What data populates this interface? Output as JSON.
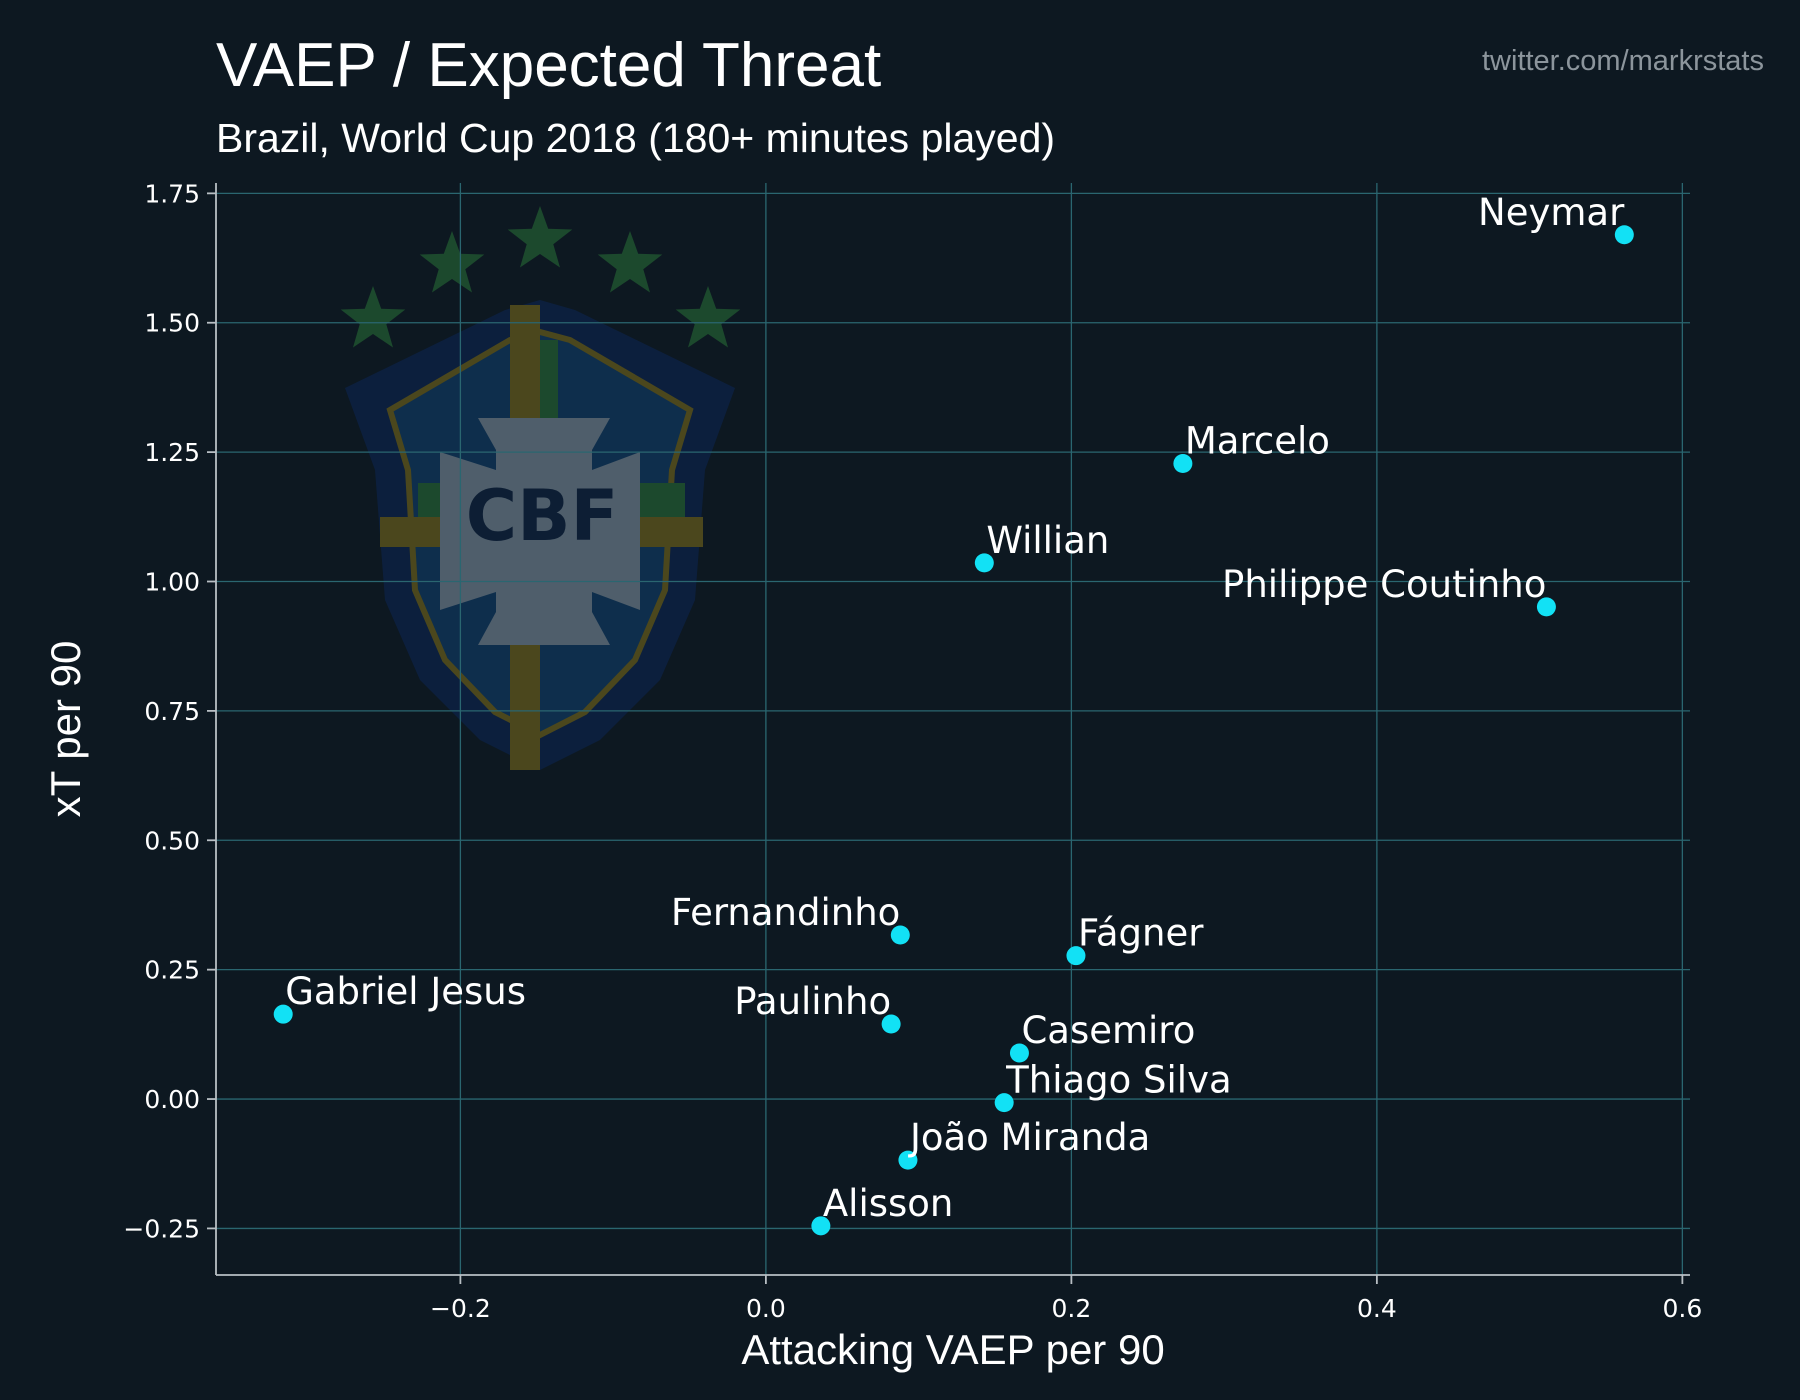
{
  "header": {
    "title": "VAEP / Expected Threat",
    "subtitle": "Brazil, World Cup 2018 (180+ minutes played)",
    "credit": "twitter.com/markrstats"
  },
  "logo": {
    "text": "CBF",
    "icon": "cbf-crest-icon",
    "colors": {
      "blue": "#0f3354",
      "green": "#1f5230",
      "yellow": "#56501d",
      "white": "#5b6b79"
    }
  },
  "colors": {
    "background": "#0d1821",
    "point": "#12e1f5",
    "grid": "#2a6670"
  },
  "chart_data": {
    "type": "scatter",
    "title": "VAEP / Expected Threat",
    "subtitle": "Brazil, World Cup 2018 (180+ minutes played)",
    "xlabel": "Attacking VAEP per 90",
    "ylabel": "xT per 90",
    "xlim": [
      -0.36,
      0.605
    ],
    "ylim": [
      -0.34,
      1.77
    ],
    "grid": true,
    "xticks": [
      -0.2,
      0.0,
      0.2,
      0.4,
      0.6
    ],
    "xtick_labels": [
      "−0.2",
      "0.0",
      "0.2",
      "0.4",
      "0.6"
    ],
    "yticks": [
      -0.25,
      0.0,
      0.25,
      0.5,
      0.75,
      1.0,
      1.25,
      1.5,
      1.75
    ],
    "ytick_labels": [
      "−0.25",
      "0.00",
      "0.25",
      "0.50",
      "0.75",
      "1.00",
      "1.25",
      "1.50",
      "1.75"
    ],
    "points": [
      {
        "name": "Neymar",
        "x": 0.562,
        "y": 1.67,
        "label_side": "left"
      },
      {
        "name": "Marcelo",
        "x": 0.273,
        "y": 1.228,
        "label_side": "right"
      },
      {
        "name": "Willian",
        "x": 0.143,
        "y": 1.036,
        "label_side": "right"
      },
      {
        "name": "Philippe Coutinho",
        "x": 0.511,
        "y": 0.951,
        "label_side": "left"
      },
      {
        "name": "Fernandinho",
        "x": 0.088,
        "y": 0.317,
        "label_side": "left"
      },
      {
        "name": "Fágner",
        "x": 0.203,
        "y": 0.277,
        "label_side": "right"
      },
      {
        "name": "Gabriel Jesus",
        "x": -0.316,
        "y": 0.164,
        "label_side": "right"
      },
      {
        "name": "Paulinho",
        "x": 0.082,
        "y": 0.145,
        "label_side": "left"
      },
      {
        "name": "Casemiro",
        "x": 0.166,
        "y": 0.089,
        "label_side": "right"
      },
      {
        "name": "Thiago Silva",
        "x": 0.156,
        "y": -0.007,
        "label_side": "right"
      },
      {
        "name": "João Miranda",
        "x": 0.093,
        "y": -0.118,
        "label_side": "right"
      },
      {
        "name": "Alisson",
        "x": 0.036,
        "y": -0.245,
        "label_side": "right"
      }
    ]
  }
}
